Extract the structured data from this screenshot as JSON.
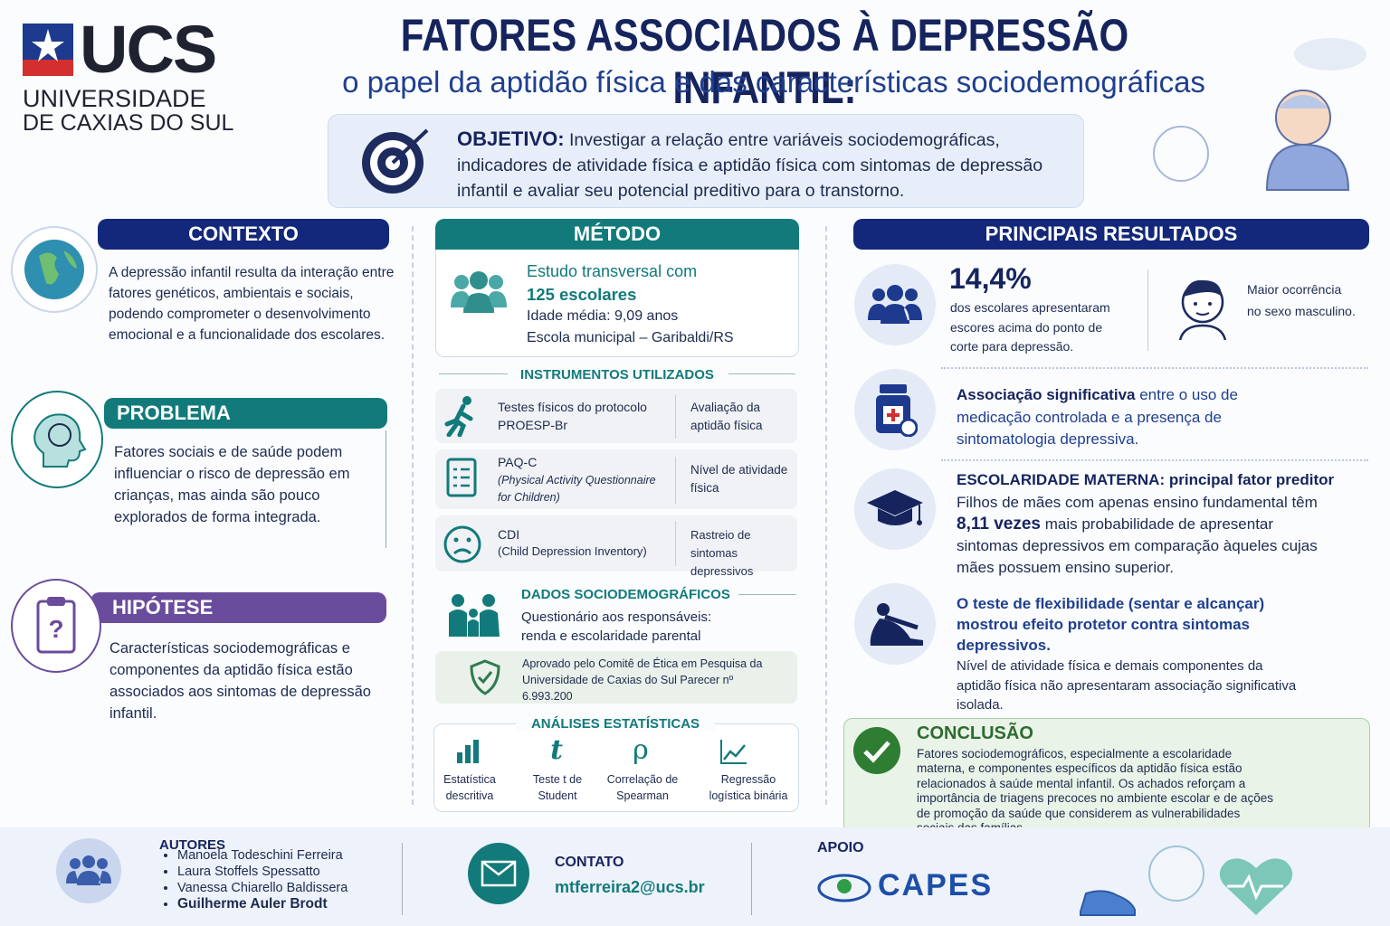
{
  "logo": {
    "abbr": "UCS",
    "name_line1": "UNIVERSIDADE",
    "name_line2": "DE CAXIAS DO SUL"
  },
  "header": {
    "title": "FATORES ASSOCIADOS À DEPRESSÃO INFANTIL:",
    "subtitle": "o papel da aptidão física e das características sociodemográficas"
  },
  "objective": {
    "label": "OBJETIVO:",
    "text": "Investigar a relação entre variáveis sociodemográficas, indicadores de atividade física e aptidão física com sintomas de depressão infantil e avaliar seu potencial preditivo para o transtorno."
  },
  "context": {
    "title": "CONTEXTO",
    "text": "A depressão infantil resulta da interação entre fatores genéticos, ambientais e sociais, podendo comprometer o desenvolvimento emocional e a funcionalidade dos escolares."
  },
  "problem": {
    "title": "PROBLEMA",
    "text": "Fatores sociais e de saúde podem influenciar o risco de depressão em crianças, mas ainda são pouco explorados de forma integrada."
  },
  "hypothesis": {
    "title": "HIPÓTESE",
    "text": "Características sociodemográficas e componentes da aptidão física estão associados aos sintomas de depressão infantil."
  },
  "method": {
    "title": "MÉTODO",
    "study_line1": "Estudo transversal com",
    "study_line2": "125 escolares",
    "age": "Idade média: 9,09 anos",
    "school": "Escola municipal – Garibaldi/RS",
    "instruments_title": "INSTRUMENTOS UTILIZADOS",
    "instruments": [
      {
        "name": "Testes físicos do protocolo PROESP-Br",
        "purpose": "Avaliação da aptidão física"
      },
      {
        "name": "PAQ-C",
        "detail": "(Physical Activity Questionnaire for Children)",
        "purpose": "Nível de atividade física"
      },
      {
        "name": "CDI",
        "detail": "(Child Depression Inventory)",
        "purpose": "Rastreio de sintomas depressivos"
      }
    ],
    "socio_title": "DADOS SOCIODEMOGRÁFICOS",
    "socio_text": "Questionário aos responsáveis: renda e escolaridade parental",
    "ethics": "Aprovado pelo Comitê de Ética em Pesquisa da Universidade de Caxias do Sul Parecer nº 6.993.200",
    "analyses_title": "ANÁLISES ESTATÍSTICAS",
    "analyses": [
      {
        "label": "Estatística descritiva"
      },
      {
        "symbol": "t",
        "label": "Teste t de Student"
      },
      {
        "symbol": "ρ",
        "label": "Correlação de Spearman"
      },
      {
        "label": "Regressão logística binária"
      }
    ]
  },
  "results": {
    "title": "PRINCIPAIS RESULTADOS",
    "prevalence_value": "14,4%",
    "prevalence_text": "dos escolares apresentaram escores acima do ponto de corte para depressão.",
    "sex": "Maior ocorrência no sexo masculino.",
    "medication_bold": "Associação significativa",
    "medication_text": "entre o uso de medicação controlada e a presença de sintomatologia depressiva.",
    "maternal_heading": "ESCOLARIDADE MATERNA: principal fator preditor",
    "maternal_text1": "Filhos de mães com apenas ensino fundamental têm",
    "maternal_value": "8,11 vezes",
    "maternal_text2": "mais probabilidade de apresentar sintomas depressivos em comparação àqueles cujas mães possuem ensino superior.",
    "flex_bold": "O teste de flexibilidade (sentar e alcançar) mostrou efeito protetor contra sintomas depressivos.",
    "flex_text": "Nível de atividade física e demais componentes da aptidão física não apresentaram associação significativa isolada.",
    "conclusion_title": "CONCLUSÃO",
    "conclusion_text": "Fatores sociodemográficos, especialmente a escolaridade materna, e componentes específicos da aptidão física estão relacionados à saúde mental infantil. Os achados reforçam a importância de triagens precoces no ambiente escolar e de ações de promoção da saúde que considerem as vulnerabilidades sociais das famílias."
  },
  "footer": {
    "authors_title": "AUTORES",
    "authors": [
      "Manoela Todeschini Ferreira",
      "Laura Stoffels Spessatto",
      "Vanessa Chiarello Baldissera",
      "Guilherme Auler Brodt"
    ],
    "contact_title": "CONTATO",
    "email": "mtferreira2@ucs.br",
    "support_title": "APOIO",
    "support_name": "CAPES"
  }
}
